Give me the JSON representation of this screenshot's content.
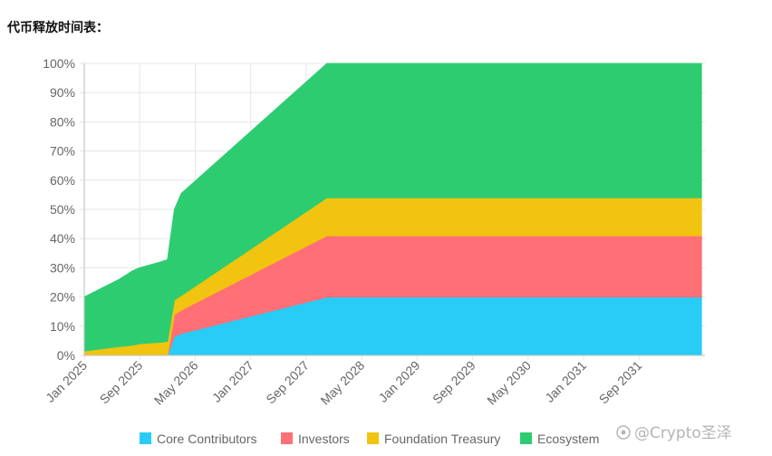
{
  "page": {
    "heading": "代币释放时间表："
  },
  "watermark": {
    "text": "@Crypto圣泽"
  },
  "chart_data": {
    "type": "area",
    "stacked": true,
    "x_axis": {
      "ticks": [
        "Jan 2025",
        "Sep 2025",
        "May 2026",
        "Jan 2027",
        "Sep 2027",
        "May 2028",
        "Jan 2029",
        "Sep 2029",
        "May 2030",
        "Jan 2031",
        "Sep 2031"
      ],
      "range": [
        "Jan 2025",
        "Jun 2032"
      ]
    },
    "y_axis": {
      "ticks": [
        "0%",
        "10%",
        "20%",
        "30%",
        "40%",
        "50%",
        "60%",
        "70%",
        "80%",
        "90%",
        "100%"
      ],
      "range": [
        0,
        100
      ],
      "unit": "%"
    },
    "grid": true,
    "legend_position": "bottom",
    "x": [
      "2025-01",
      "2025-06",
      "2025-08",
      "2025-09",
      "2025-12",
      "2026-01",
      "2026-02",
      "2026-03",
      "2027-12",
      "2032-06"
    ],
    "series": [
      {
        "name": "Core Contributors",
        "color": "#29CCF7",
        "values": [
          0,
          0,
          0,
          0,
          0,
          0,
          6.5,
          7.5,
          20,
          20
        ]
      },
      {
        "name": "Investors",
        "color": "#FF6F75",
        "values": [
          0,
          0,
          0,
          0,
          0,
          0,
          7.5,
          8,
          21,
          21
        ]
      },
      {
        "name": "Foundation Treasury",
        "color": "#F1C40F",
        "values": [
          1.5,
          3,
          3.5,
          4,
          4.5,
          4.8,
          5,
          5,
          13,
          13
        ]
      },
      {
        "name": "Ecosystem",
        "color": "#2ECC71",
        "values": [
          18.5,
          23,
          25.5,
          26,
          27.5,
          28,
          31,
          35,
          46,
          46
        ]
      }
    ]
  }
}
